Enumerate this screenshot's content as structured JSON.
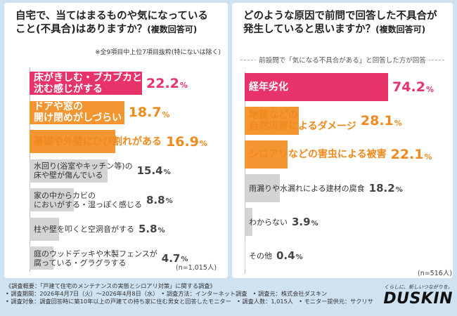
{
  "left": {
    "title_line1": "自宅で、当てはまるものや気になっている",
    "title_line2": "こと(不具合)はありますか？",
    "title_sub": "(複数回答可)",
    "note": "※全9項目中上位7項目抜粋(特にないは除く)",
    "n_label": "(n=1,015人)"
  },
  "right": {
    "title_line1": "どのような原因で前問で回答した不具合が",
    "title_line2": "発生していると思いますか？",
    "title_sub": "(複数回答可)",
    "caption": "前設問で「気になる不具合がある」と回答した方が回答",
    "n_label": "(n=516人)"
  },
  "chart_data": [
    {
      "type": "bar",
      "orientation": "horizontal",
      "title": "自宅で、当てはまるものや気になっていること(不具合)はありますか？(複数回答可)",
      "unit": "%",
      "categories": [
        "床がきしむ・ブカブカと沈む感じがする",
        "ドアや窓の開け閉めがしづらい",
        "基礎や外壁にひび割れがある",
        "水回り(浴室やキッチン等)の床や壁が傷んでいる",
        "家の中からカビのにおいがする・湿っぽく感じる",
        "柱や壁を叩くと空洞音がする",
        "庭のウッドデッキや木製フェンスが腐っている・グラグラする"
      ],
      "label_lines": [
        [
          "床がきしむ・ブカブカと",
          "沈む感じがする"
        ],
        [
          "ドアや窓の",
          "開け閉めがしづらい"
        ],
        [
          "基礎や外壁にひび割れがある"
        ],
        [
          "水回り(浴室やキッチン等)の",
          "床や壁が傷んでいる"
        ],
        [
          "家の中からカビの",
          "においがする・湿っぽく感じる"
        ],
        [
          "柱や壁を叩くと空洞音がする"
        ],
        [
          "庭のウッドデッキや木製フェンスが",
          "腐っている・グラグラする"
        ]
      ],
      "values": [
        22.2,
        18.7,
        16.9,
        15.4,
        8.8,
        5.8,
        4.7
      ],
      "value_labels": [
        "22.2",
        "18.7",
        "16.9",
        "15.4",
        "8.8",
        "5.8",
        "4.7"
      ],
      "xlim": [
        0,
        100
      ]
    },
    {
      "type": "bar",
      "orientation": "horizontal",
      "title": "どのような原因で前問で回答した不具合が発生していると思いますか？(複数回答可)",
      "unit": "%",
      "categories": [
        "経年劣化",
        "地震などの自然災害によるダメージ",
        "シロアリなどの害虫による被害",
        "雨漏りや水漏れによる建材の腐食",
        "わからない",
        "その他"
      ],
      "label_lines": [
        [
          "経年劣化"
        ],
        [
          "地震などの",
          "自然災害によるダメージ"
        ],
        [
          "シロアリなどの害虫による被害"
        ],
        [
          "雨漏りや水漏れによる建材の腐食"
        ],
        [
          "わからない"
        ],
        [
          "その他"
        ]
      ],
      "values": [
        74.2,
        28.1,
        22.1,
        18.2,
        3.9,
        0.4
      ],
      "value_labels": [
        "74.2",
        "28.1",
        "22.1",
        "18.2",
        "3.9",
        "0.4"
      ],
      "xlim": [
        0,
        100
      ]
    }
  ],
  "colors": {
    "top": "#e8336a",
    "orange": "#f39530",
    "gray": "#d4d4d4",
    "top_text": "#e8336a",
    "orange_text": "#ef8a1e",
    "gray_text": "#444444"
  },
  "footer": {
    "line1": "《調査概要：「戸建て住宅のメンテナンスの実態とシロアリ対策」に関する調査》",
    "line2": "• 調査期間：2026年4月7日（火）～2026年4月8日（水）　• 調査方法：インターネット調査　• 調査元：株式会社ダスキン",
    "line3": "• 調査対象：調査回答時に築10年以上の戸建ての持ち家に住む男女と回答したモニター　• 調査人数：1,015人　• モニター提供元：サクリサ"
  },
  "brand": {
    "tagline": "くらしに、新しいつながりを。",
    "logo": "DUSKIN"
  }
}
